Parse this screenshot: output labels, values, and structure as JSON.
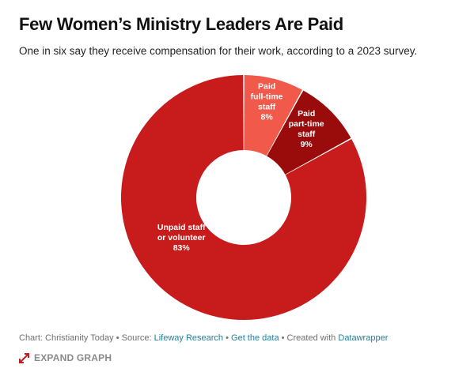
{
  "title": "Few Women’s Ministry Leaders Are Paid",
  "subtitle": "One in six say they receive compensation for their work, according to a 2023 survey.",
  "chart_data": {
    "type": "pie",
    "title": "Few Women’s Ministry Leaders Are Paid",
    "subtitle": "One in six say they receive compensation for their work, according to a 2023 survey.",
    "donut": true,
    "slices": [
      {
        "label": "Paid full-time staff",
        "label_lines": [
          "Paid",
          "full-time",
          "staff"
        ],
        "value": 8,
        "value_label": "8%",
        "color": "#f15a4a"
      },
      {
        "label": "Paid part-time staff",
        "label_lines": [
          "Paid",
          "part-time",
          "staff"
        ],
        "value": 9,
        "value_label": "9%",
        "color": "#9a0b0b"
      },
      {
        "label": "Unpaid staff or volunteer",
        "label_lines": [
          "Unpaid staff",
          "or volunteer"
        ],
        "value": 83,
        "value_label": "83%",
        "color": "#c81c1c"
      }
    ]
  },
  "footer": {
    "chart_prefix": "Chart: Christianity Today",
    "source_prefix": "Source:",
    "source_link": "Lifeway Research",
    "data_link": "Get the data",
    "created_prefix": "Created with",
    "created_link": "Datawrapper",
    "separator": "•"
  },
  "expand": {
    "label": "EXPAND GRAPH",
    "icon": "expand-arrows-icon",
    "color": "#c81c1c"
  }
}
